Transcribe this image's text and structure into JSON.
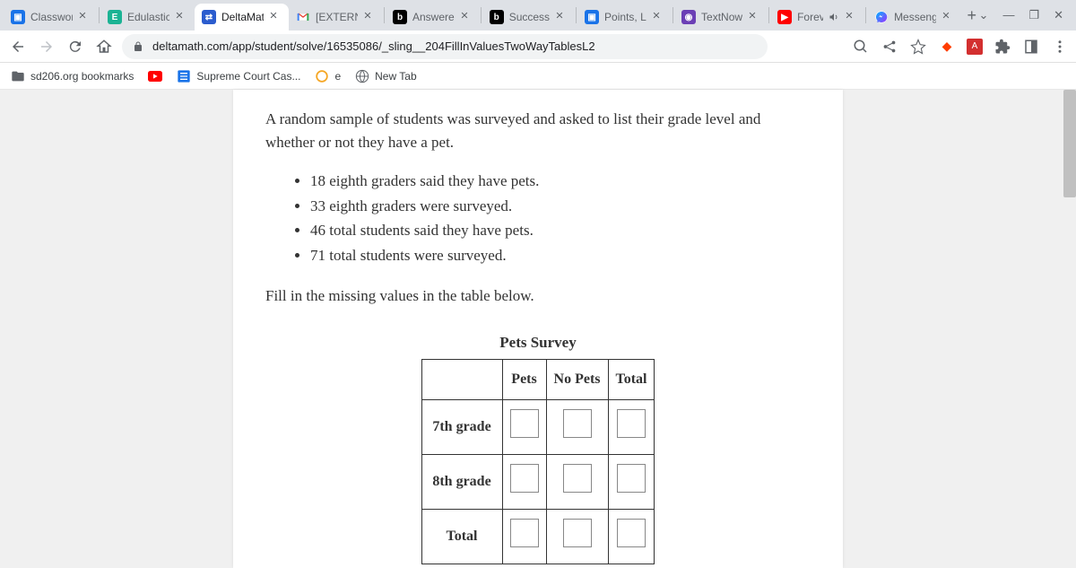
{
  "tabs": [
    {
      "title": "Classwor",
      "favicon_bg": "#1a73e8",
      "favicon_txt": "▣"
    },
    {
      "title": "Edulastic",
      "favicon_bg": "#1bb394",
      "favicon_txt": "E"
    },
    {
      "title": "DeltaMat",
      "favicon_bg": "#2b5cce",
      "favicon_txt": "⇄",
      "active": true
    },
    {
      "title": "[EXTERN",
      "favicon_bg": "#ffffff",
      "favicon_txt": "M",
      "gmail": true
    },
    {
      "title": "Answere",
      "favicon_bg": "#000000",
      "favicon_txt": "b"
    },
    {
      "title": "Success ",
      "favicon_bg": "#000000",
      "favicon_txt": "b"
    },
    {
      "title": "Points, Li",
      "favicon_bg": "#1a73e8",
      "favicon_txt": "▣"
    },
    {
      "title": "TextNow",
      "favicon_bg": "#6b3fb5",
      "favicon_txt": "◉"
    },
    {
      "title": "Forev",
      "favicon_bg": "#ff0000",
      "favicon_txt": "▶",
      "audio": true
    },
    {
      "title": "Messeng",
      "favicon_bg": "#ffffff",
      "favicon_txt": "◉",
      "messenger": true
    }
  ],
  "url": "deltamath.com/app/student/solve/16535086/_sling__204FillInValuesTwoWayTablesL2",
  "bookmarks": [
    {
      "label": "sd206.org bookmarks",
      "icon": "folder"
    },
    {
      "label": "",
      "icon": "youtube"
    },
    {
      "label": "Supreme Court Cas...",
      "icon": "list"
    },
    {
      "label": "e",
      "icon": "e"
    },
    {
      "label": "New Tab",
      "icon": "globe"
    }
  ],
  "problem": {
    "intro": "A random sample of students was surveyed and asked to list their grade level and whether or not they have a pet.",
    "bullets": [
      "18 eighth graders said they have pets.",
      "33 eighth graders were surveyed.",
      "46 total students said they have pets.",
      "71 total students were surveyed."
    ],
    "instruction": "Fill in the missing values in the table below.",
    "table": {
      "caption": "Pets Survey",
      "cols": [
        "",
        "Pets",
        "No Pets",
        "Total"
      ],
      "rows": [
        "7th grade",
        "8th grade",
        "Total"
      ]
    }
  }
}
